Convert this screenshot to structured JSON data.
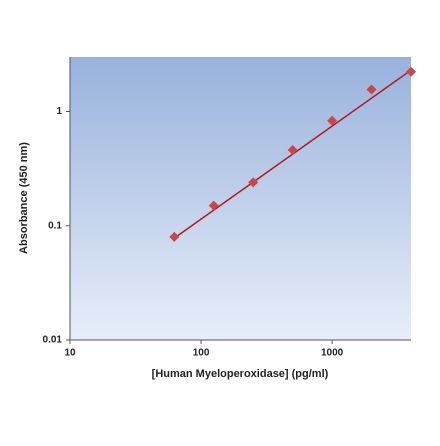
{
  "chart_data": {
    "type": "scatter",
    "xlabel": "[Human Myeloperoxidase] (pg/ml)",
    "ylabel": "Absorbance (450 nm)",
    "x": [
      62.5,
      125,
      250,
      500,
      1000,
      2000,
      4000
    ],
    "series": [
      {
        "color": "#c84848",
        "values": [
          0.08,
          0.15,
          0.24,
          0.46,
          0.83,
          1.56,
          2.23
        ]
      }
    ],
    "fit_line": {
      "color": "#b01c1c",
      "x": [
        62.5,
        4000
      ],
      "values": [
        0.078,
        2.3
      ]
    },
    "xscale": "log",
    "yscale": "log",
    "xlim": [
      10,
      4000
    ],
    "ylim": [
      0.01,
      3
    ],
    "xticks": [
      10,
      100,
      1000
    ],
    "yticks": [
      0.01,
      0.1,
      1
    ]
  }
}
